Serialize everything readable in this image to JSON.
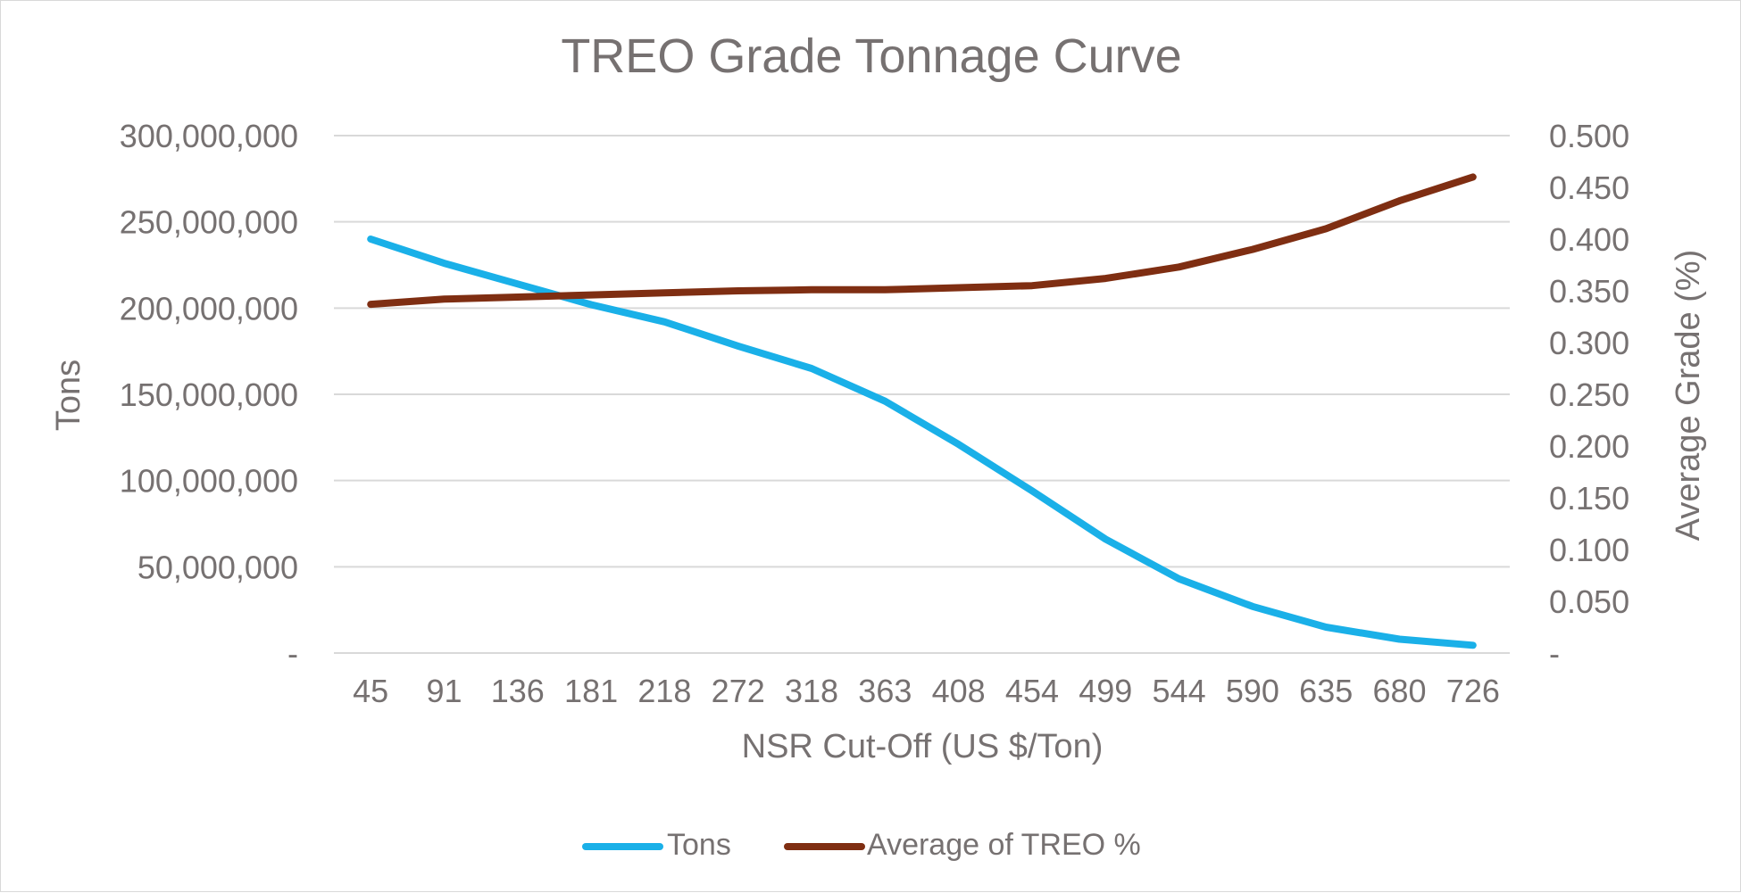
{
  "chart_data": {
    "type": "line",
    "title": "TREO Grade Tonnage Curve",
    "xlabel": "NSR Cut-Off (US $/Ton)",
    "ylabel": "Tons",
    "y2label": "Average Grade (%)",
    "categories": [
      "45",
      "91",
      "136",
      "181",
      "218",
      "272",
      "318",
      "363",
      "408",
      "454",
      "499",
      "544",
      "590",
      "635",
      "680",
      "726"
    ],
    "y_axis": {
      "min": 0,
      "max": 300000000,
      "ticks": [
        0,
        50000000,
        100000000,
        150000000,
        200000000,
        250000000,
        300000000
      ],
      "tick_labels": [
        "-",
        "50,000,000",
        "100,000,000",
        "150,000,000",
        "200,000,000",
        "250,000,000",
        "300,000,000"
      ]
    },
    "y2_axis": {
      "min": 0,
      "max": 0.5,
      "ticks": [
        0,
        0.05,
        0.1,
        0.15,
        0.2,
        0.25,
        0.3,
        0.35,
        0.4,
        0.45,
        0.5
      ],
      "tick_labels": [
        "-",
        "0.050",
        "0.100",
        "0.150",
        "0.200",
        "0.250",
        "0.300",
        "0.350",
        "0.400",
        "0.450",
        "0.500"
      ]
    },
    "grid": true,
    "legend_position": "bottom",
    "series": [
      {
        "name": "Tons",
        "axis": "left",
        "color": "#1AB0E8",
        "values": [
          240000000,
          226000000,
          214000000,
          202000000,
          192000000,
          178000000,
          165000000,
          146000000,
          121000000,
          94000000,
          66000000,
          43000000,
          27000000,
          15000000,
          8000000,
          4500000
        ]
      },
      {
        "name": "Average of TREO %",
        "axis": "right",
        "color": "#7F2E12",
        "values": [
          0.337,
          0.342,
          0.344,
          0.346,
          0.348,
          0.35,
          0.351,
          0.351,
          0.353,
          0.355,
          0.362,
          0.373,
          0.39,
          0.41,
          0.437,
          0.46
        ]
      }
    ]
  }
}
